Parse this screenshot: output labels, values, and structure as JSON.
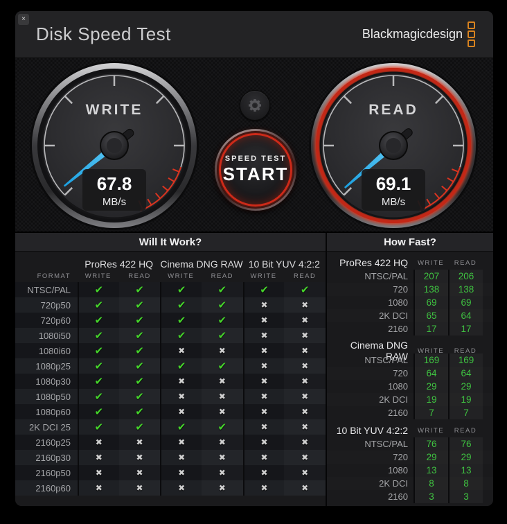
{
  "titlebar": {
    "title": "Disk Speed Test",
    "brand": "Blackmagicdesign",
    "close": "×"
  },
  "gauges": {
    "write": {
      "label": "WRITE",
      "value": "67.8",
      "unit": "MB/s"
    },
    "read": {
      "label": "READ",
      "value": "69.1",
      "unit": "MB/s"
    }
  },
  "start_button": {
    "subtitle": "SPEED TEST",
    "title": "START"
  },
  "will_it_work": {
    "title": "Will It Work?",
    "format_header": "FORMAT",
    "group_headers": [
      "ProRes 422 HQ",
      "Cinema DNG RAW",
      "10 Bit YUV 4:2:2"
    ],
    "sub_headers": [
      "WRITE",
      "READ",
      "WRITE",
      "READ",
      "WRITE",
      "READ"
    ],
    "rows": [
      {
        "format": "NTSC/PAL",
        "results": [
          "check",
          "check",
          "check",
          "check",
          "check",
          "check"
        ]
      },
      {
        "format": "720p50",
        "results": [
          "check",
          "check",
          "check",
          "check",
          "cross",
          "cross"
        ]
      },
      {
        "format": "720p60",
        "results": [
          "check",
          "check",
          "check",
          "check",
          "cross",
          "cross"
        ]
      },
      {
        "format": "1080i50",
        "results": [
          "check",
          "check",
          "check",
          "check",
          "cross",
          "cross"
        ]
      },
      {
        "format": "1080i60",
        "results": [
          "check",
          "check",
          "cross",
          "cross",
          "cross",
          "cross"
        ]
      },
      {
        "format": "1080p25",
        "results": [
          "check",
          "check",
          "check",
          "check",
          "cross",
          "cross"
        ]
      },
      {
        "format": "1080p30",
        "results": [
          "check",
          "check",
          "cross",
          "cross",
          "cross",
          "cross"
        ]
      },
      {
        "format": "1080p50",
        "results": [
          "check",
          "check",
          "cross",
          "cross",
          "cross",
          "cross"
        ]
      },
      {
        "format": "1080p60",
        "results": [
          "check",
          "check",
          "cross",
          "cross",
          "cross",
          "cross"
        ]
      },
      {
        "format": "2K DCI 25",
        "results": [
          "check",
          "check",
          "check",
          "check",
          "cross",
          "cross"
        ]
      },
      {
        "format": "2160p25",
        "results": [
          "cross",
          "cross",
          "cross",
          "cross",
          "cross",
          "cross"
        ]
      },
      {
        "format": "2160p30",
        "results": [
          "cross",
          "cross",
          "cross",
          "cross",
          "cross",
          "cross"
        ]
      },
      {
        "format": "2160p50",
        "results": [
          "cross",
          "cross",
          "cross",
          "cross",
          "cross",
          "cross"
        ]
      },
      {
        "format": "2160p60",
        "results": [
          "cross",
          "cross",
          "cross",
          "cross",
          "cross",
          "cross"
        ]
      }
    ]
  },
  "how_fast": {
    "title": "How Fast?",
    "col_headers": [
      "WRITE",
      "READ"
    ],
    "sections": [
      {
        "label": "ProRes 422 HQ",
        "rows": [
          [
            "NTSC/PAL",
            "207",
            "206"
          ],
          [
            "720",
            "138",
            "138"
          ],
          [
            "1080",
            "69",
            "69"
          ],
          [
            "2K DCI",
            "65",
            "64"
          ],
          [
            "2160",
            "17",
            "17"
          ]
        ]
      },
      {
        "label": "Cinema DNG RAW",
        "rows": [
          [
            "NTSC/PAL",
            "169",
            "169"
          ],
          [
            "720",
            "64",
            "64"
          ],
          [
            "1080",
            "29",
            "29"
          ],
          [
            "2K DCI",
            "19",
            "19"
          ],
          [
            "2160",
            "7",
            "7"
          ]
        ]
      },
      {
        "label": "10 Bit YUV 4:2:2",
        "rows": [
          [
            "NTSC/PAL",
            "76",
            "76"
          ],
          [
            "720",
            "29",
            "29"
          ],
          [
            "1080",
            "13",
            "13"
          ],
          [
            "2K DCI",
            "8",
            "8"
          ],
          [
            "2160",
            "3",
            "3"
          ]
        ]
      }
    ]
  },
  "glyphs": {
    "check": "✔",
    "cross": "✖"
  },
  "colors": {
    "accent_orange": "#d9831f",
    "needle_blue": "#29b2ee",
    "check_green": "#45d32b",
    "value_green": "#3fc241",
    "redline_red": "#da3420",
    "read_ring_red": "#d32f1f"
  }
}
